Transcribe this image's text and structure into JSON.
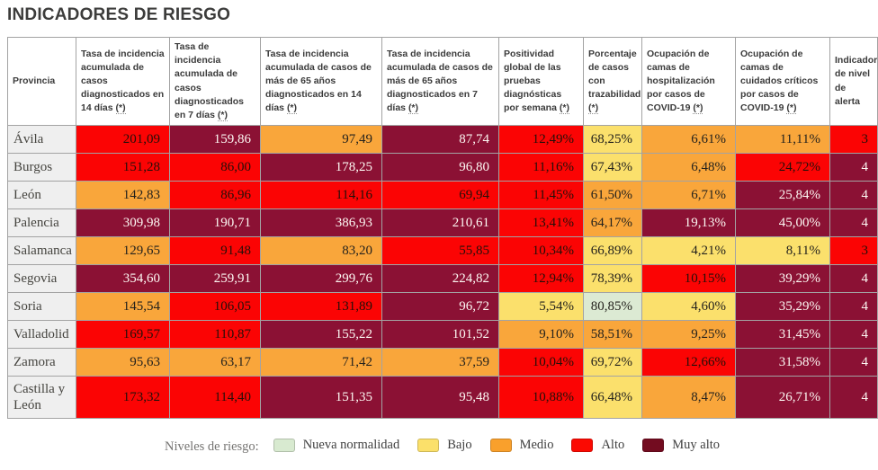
{
  "title": "INDICADORES DE RIESGO",
  "table": {
    "columns": [
      {
        "key": "provincia",
        "label": "Provincia",
        "asterisk": ""
      },
      {
        "key": "ia-14-dias",
        "label": "Tasa de incidencia acumulada de casos diagnosticados en 14 días",
        "asterisk": "(*)"
      },
      {
        "key": "ia-7-dias",
        "label": "Tasa de incidencia acumulada de casos diagnosticados en 7 días",
        "asterisk": "(*)"
      },
      {
        "key": "ia-65-14-dias",
        "label": "Tasa de incidencia acumulada de casos de más de 65 años diagnosticados en 14 días",
        "asterisk": "(*)"
      },
      {
        "key": "ia-65-7-dias",
        "label": "Tasa de incidencia acumulada de casos de más de 65 años diagnosticados en 7 días",
        "asterisk": "(*)"
      },
      {
        "key": "positividad",
        "label": "Positividad global de las pruebas diagnósticas por semana",
        "asterisk": "(*)"
      },
      {
        "key": "trazabilidad",
        "label": "Porcentaje de casos con trazabilidad",
        "asterisk": "(*)"
      },
      {
        "key": "ocupacion-hospital",
        "label": "Ocupación de camas de hospitalización por casos de COVID-19",
        "asterisk": "(*)"
      },
      {
        "key": "ocupacion-criticos",
        "label": "Ocupación de camas de cuidados críticos por casos de COVID-19",
        "asterisk": "(*)"
      },
      {
        "key": "nivel-alerta",
        "label": "Indicador de nivel de alerta",
        "asterisk": ""
      }
    ],
    "rows": [
      {
        "province": "Ávila",
        "cells": [
          {
            "v": "201,09",
            "level": "alto"
          },
          {
            "v": "159,86",
            "level": "muy_alto"
          },
          {
            "v": "97,49",
            "level": "medio"
          },
          {
            "v": "87,74",
            "level": "muy_alto"
          },
          {
            "v": "12,49%",
            "level": "alto"
          },
          {
            "v": "68,25%",
            "level": "bajo"
          },
          {
            "v": "6,61%",
            "level": "medio"
          },
          {
            "v": "11,11%",
            "level": "medio"
          },
          {
            "v": "3",
            "level": "alto"
          }
        ]
      },
      {
        "province": "Burgos",
        "cells": [
          {
            "v": "151,28",
            "level": "alto"
          },
          {
            "v": "86,00",
            "level": "alto"
          },
          {
            "v": "178,25",
            "level": "muy_alto"
          },
          {
            "v": "96,80",
            "level": "muy_alto"
          },
          {
            "v": "11,16%",
            "level": "alto"
          },
          {
            "v": "67,43%",
            "level": "bajo"
          },
          {
            "v": "6,48%",
            "level": "medio"
          },
          {
            "v": "24,72%",
            "level": "alto"
          },
          {
            "v": "4",
            "level": "muy_alto"
          }
        ]
      },
      {
        "province": "León",
        "cells": [
          {
            "v": "142,83",
            "level": "medio"
          },
          {
            "v": "86,96",
            "level": "alto"
          },
          {
            "v": "114,16",
            "level": "alto"
          },
          {
            "v": "69,94",
            "level": "alto"
          },
          {
            "v": "11,45%",
            "level": "alto"
          },
          {
            "v": "61,50%",
            "level": "medio"
          },
          {
            "v": "6,71%",
            "level": "medio"
          },
          {
            "v": "25,84%",
            "level": "muy_alto"
          },
          {
            "v": "4",
            "level": "muy_alto"
          }
        ]
      },
      {
        "province": "Palencia",
        "cells": [
          {
            "v": "309,98",
            "level": "muy_alto"
          },
          {
            "v": "190,71",
            "level": "muy_alto"
          },
          {
            "v": "386,93",
            "level": "muy_alto"
          },
          {
            "v": "210,61",
            "level": "muy_alto"
          },
          {
            "v": "13,41%",
            "level": "alto"
          },
          {
            "v": "64,17%",
            "level": "medio"
          },
          {
            "v": "19,13%",
            "level": "muy_alto"
          },
          {
            "v": "45,00%",
            "level": "muy_alto"
          },
          {
            "v": "4",
            "level": "muy_alto"
          }
        ]
      },
      {
        "province": "Salamanca",
        "cells": [
          {
            "v": "129,65",
            "level": "medio"
          },
          {
            "v": "91,48",
            "level": "alto"
          },
          {
            "v": "83,20",
            "level": "medio"
          },
          {
            "v": "55,85",
            "level": "alto"
          },
          {
            "v": "10,34%",
            "level": "alto"
          },
          {
            "v": "66,89%",
            "level": "bajo"
          },
          {
            "v": "4,21%",
            "level": "bajo"
          },
          {
            "v": "8,11%",
            "level": "bajo"
          },
          {
            "v": "3",
            "level": "alto"
          }
        ]
      },
      {
        "province": "Segovia",
        "cells": [
          {
            "v": "354,60",
            "level": "muy_alto"
          },
          {
            "v": "259,91",
            "level": "muy_alto"
          },
          {
            "v": "299,76",
            "level": "muy_alto"
          },
          {
            "v": "224,82",
            "level": "muy_alto"
          },
          {
            "v": "12,94%",
            "level": "alto"
          },
          {
            "v": "78,39%",
            "level": "bajo"
          },
          {
            "v": "10,15%",
            "level": "alto"
          },
          {
            "v": "39,29%",
            "level": "muy_alto"
          },
          {
            "v": "4",
            "level": "muy_alto"
          }
        ]
      },
      {
        "province": "Soria",
        "cells": [
          {
            "v": "145,54",
            "level": "medio"
          },
          {
            "v": "106,05",
            "level": "alto"
          },
          {
            "v": "131,89",
            "level": "alto"
          },
          {
            "v": "96,72",
            "level": "muy_alto"
          },
          {
            "v": "5,54%",
            "level": "bajo"
          },
          {
            "v": "80,85%",
            "level": "nueva_normalidad"
          },
          {
            "v": "4,60%",
            "level": "bajo"
          },
          {
            "v": "35,29%",
            "level": "muy_alto"
          },
          {
            "v": "4",
            "level": "muy_alto"
          }
        ]
      },
      {
        "province": "Valladolid",
        "cells": [
          {
            "v": "169,57",
            "level": "alto"
          },
          {
            "v": "110,87",
            "level": "alto"
          },
          {
            "v": "155,22",
            "level": "muy_alto"
          },
          {
            "v": "101,52",
            "level": "muy_alto"
          },
          {
            "v": "9,10%",
            "level": "medio"
          },
          {
            "v": "58,51%",
            "level": "medio"
          },
          {
            "v": "9,25%",
            "level": "medio"
          },
          {
            "v": "31,45%",
            "level": "muy_alto"
          },
          {
            "v": "4",
            "level": "muy_alto"
          }
        ]
      },
      {
        "province": "Zamora",
        "cells": [
          {
            "v": "95,63",
            "level": "medio"
          },
          {
            "v": "63,17",
            "level": "medio"
          },
          {
            "v": "71,42",
            "level": "medio"
          },
          {
            "v": "37,59",
            "level": "medio"
          },
          {
            "v": "10,04%",
            "level": "alto"
          },
          {
            "v": "69,72%",
            "level": "bajo"
          },
          {
            "v": "12,66%",
            "level": "alto"
          },
          {
            "v": "31,58%",
            "level": "muy_alto"
          },
          {
            "v": "4",
            "level": "muy_alto"
          }
        ]
      },
      {
        "province": "Castilla y León",
        "cells": [
          {
            "v": "173,32",
            "level": "alto"
          },
          {
            "v": "114,40",
            "level": "alto"
          },
          {
            "v": "151,35",
            "level": "muy_alto"
          },
          {
            "v": "95,48",
            "level": "muy_alto"
          },
          {
            "v": "10,88%",
            "level": "alto"
          },
          {
            "v": "66,48%",
            "level": "bajo"
          },
          {
            "v": "8,47%",
            "level": "medio"
          },
          {
            "v": "26,71%",
            "level": "muy_alto"
          },
          {
            "v": "4",
            "level": "muy_alto"
          }
        ]
      }
    ]
  },
  "legend": {
    "title": "Niveles de riesgo:",
    "items": [
      {
        "key": "nueva_normalidad",
        "label": "Nueva normalidad"
      },
      {
        "key": "bajo",
        "label": "Bajo"
      },
      {
        "key": "medio",
        "label": "Medio"
      },
      {
        "key": "alto",
        "label": "Alto"
      },
      {
        "key": "muy_alto",
        "label": "Muy alto"
      }
    ]
  },
  "colors": {
    "levels": {
      "nueva_normalidad": {
        "bg": "#dcead3",
        "text": "#24221d"
      },
      "bajo": {
        "bg": "#fbe06c",
        "text": "#24221d"
      },
      "medio": {
        "bg": "#f9a63b",
        "text": "#24221d"
      },
      "alto": {
        "bg": "#fb0404",
        "text": "#241009"
      },
      "muy_alto": {
        "bg": "#8b1134",
        "text": "#fdf8f3"
      }
    },
    "legend_swatches": {
      "nueva_normalidad": "#d8ead0",
      "bajo": "#fbe06a",
      "medio": "#f9a02c",
      "alto": "#fb0a02",
      "muy_alto": "#730c20"
    },
    "row_label_bg": "#efefef"
  }
}
